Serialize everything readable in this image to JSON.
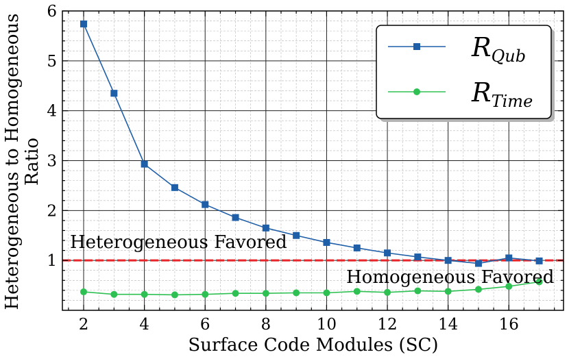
{
  "chart_data": {
    "type": "line",
    "x": [
      2,
      3,
      4,
      5,
      6,
      7,
      8,
      9,
      10,
      11,
      12,
      13,
      14,
      15,
      16,
      17
    ],
    "series": [
      {
        "name": "R_Qub",
        "name_base": "R",
        "name_sub": "Qub",
        "color": "#1f5fa8",
        "marker": "square",
        "values": [
          5.74,
          4.35,
          2.93,
          2.46,
          2.12,
          1.86,
          1.65,
          1.5,
          1.36,
          1.25,
          1.15,
          1.07,
          1.0,
          0.94,
          1.05,
          0.99
        ]
      },
      {
        "name": "R_Time",
        "name_base": "R",
        "name_sub": "Time",
        "color": "#2ec052",
        "marker": "circle",
        "values": [
          0.37,
          0.32,
          0.32,
          0.31,
          0.32,
          0.34,
          0.34,
          0.35,
          0.35,
          0.38,
          0.36,
          0.39,
          0.38,
          0.42,
          0.48,
          0.57
        ]
      }
    ],
    "reference_line": {
      "y": 1.0,
      "color": "#e8242b",
      "style": "dashed"
    },
    "xlabel": "Surface Code Modules (SC)",
    "ylabel_lines": [
      "Heterogeneous to Homogeneous",
      "Ratio"
    ],
    "x_ticks": [
      2,
      4,
      6,
      8,
      10,
      12,
      14,
      16
    ],
    "y_ticks": [
      1,
      2,
      3,
      4,
      5,
      6
    ],
    "xlim": [
      1.3,
      17.8
    ],
    "ylim": [
      0,
      6
    ],
    "grid": true,
    "legend_position": "top-right",
    "annotations": {
      "upper": "Heterogeneous Favored",
      "lower": "Homogeneous Favored"
    }
  }
}
